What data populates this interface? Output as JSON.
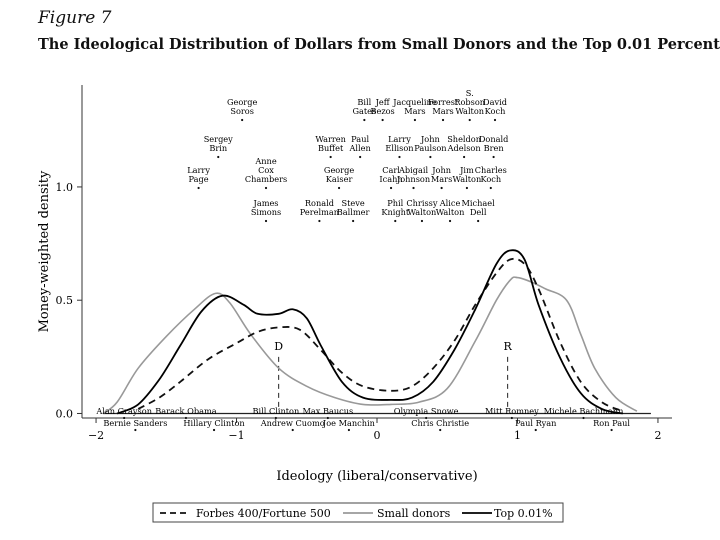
{
  "figure_label": "Figure 7",
  "title": "The Ideological Distribution of Dollars from Small Donors and the Top 0.01 Percent",
  "chart_data": {
    "type": "line",
    "xlabel": "Ideology (liberal/conservative)",
    "ylabel": "Money-weighted density",
    "xlim": [
      -2.1,
      2.1
    ],
    "ylim": [
      -0.02,
      1.45
    ],
    "x_ticks": [
      {
        "value": -2,
        "label": "−2"
      },
      {
        "value": -1,
        "label": "−1"
      },
      {
        "value": 0,
        "label": "0"
      },
      {
        "value": 1,
        "label": "1"
      },
      {
        "value": 2,
        "label": "2"
      }
    ],
    "y_ticks": [
      {
        "value": 0,
        "label": "0.0"
      },
      {
        "value": 0.5,
        "label": "0.5"
      },
      {
        "value": 1,
        "label": "1.0"
      }
    ],
    "grid": false,
    "legend_position": "bottom",
    "series": [
      {
        "name": "Forbes 400/Fortune 500",
        "style": "dashed",
        "color": "#111111",
        "points": [
          [
            -1.7,
            0.02
          ],
          [
            -1.55,
            0.07
          ],
          [
            -1.4,
            0.14
          ],
          [
            -1.2,
            0.24
          ],
          [
            -1.0,
            0.31
          ],
          [
            -0.85,
            0.36
          ],
          [
            -0.7,
            0.38
          ],
          [
            -0.55,
            0.37
          ],
          [
            -0.4,
            0.28
          ],
          [
            -0.25,
            0.18
          ],
          [
            -0.1,
            0.12
          ],
          [
            0.1,
            0.1
          ],
          [
            0.25,
            0.12
          ],
          [
            0.4,
            0.2
          ],
          [
            0.55,
            0.32
          ],
          [
            0.7,
            0.48
          ],
          [
            0.85,
            0.62
          ],
          [
            0.95,
            0.68
          ],
          [
            1.05,
            0.66
          ],
          [
            1.15,
            0.55
          ],
          [
            1.3,
            0.32
          ],
          [
            1.45,
            0.14
          ],
          [
            1.6,
            0.05
          ],
          [
            1.75,
            0.01
          ]
        ]
      },
      {
        "name": "Small donors",
        "style": "solid",
        "color": "#999999",
        "points": [
          [
            -1.95,
            0.0
          ],
          [
            -1.85,
            0.05
          ],
          [
            -1.7,
            0.2
          ],
          [
            -1.5,
            0.34
          ],
          [
            -1.3,
            0.46
          ],
          [
            -1.15,
            0.53
          ],
          [
            -1.05,
            0.49
          ],
          [
            -0.9,
            0.35
          ],
          [
            -0.7,
            0.2
          ],
          [
            -0.5,
            0.12
          ],
          [
            -0.3,
            0.07
          ],
          [
            -0.1,
            0.04
          ],
          [
            0.1,
            0.04
          ],
          [
            0.3,
            0.05
          ],
          [
            0.5,
            0.11
          ],
          [
            0.7,
            0.32
          ],
          [
            0.85,
            0.5
          ],
          [
            0.95,
            0.59
          ],
          [
            1.0,
            0.6
          ],
          [
            1.1,
            0.58
          ],
          [
            1.2,
            0.55
          ],
          [
            1.35,
            0.5
          ],
          [
            1.45,
            0.35
          ],
          [
            1.55,
            0.2
          ],
          [
            1.7,
            0.07
          ],
          [
            1.85,
            0.01
          ]
        ]
      },
      {
        "name": "Top 0.01%",
        "style": "solid",
        "color": "#000000",
        "points": [
          [
            -1.85,
            0.0
          ],
          [
            -1.7,
            0.04
          ],
          [
            -1.55,
            0.15
          ],
          [
            -1.4,
            0.3
          ],
          [
            -1.25,
            0.45
          ],
          [
            -1.1,
            0.52
          ],
          [
            -0.95,
            0.48
          ],
          [
            -0.85,
            0.44
          ],
          [
            -0.7,
            0.44
          ],
          [
            -0.6,
            0.46
          ],
          [
            -0.5,
            0.42
          ],
          [
            -0.4,
            0.3
          ],
          [
            -0.25,
            0.14
          ],
          [
            -0.1,
            0.07
          ],
          [
            0.1,
            0.06
          ],
          [
            0.25,
            0.07
          ],
          [
            0.4,
            0.14
          ],
          [
            0.55,
            0.28
          ],
          [
            0.7,
            0.46
          ],
          [
            0.85,
            0.66
          ],
          [
            0.95,
            0.72
          ],
          [
            1.05,
            0.68
          ],
          [
            1.15,
            0.48
          ],
          [
            1.3,
            0.25
          ],
          [
            1.45,
            0.09
          ],
          [
            1.6,
            0.02
          ],
          [
            1.75,
            0.0
          ]
        ]
      }
    ],
    "markers": [
      {
        "label": "D",
        "x": -0.7
      },
      {
        "label": "R",
        "x": 0.93
      }
    ],
    "top_annotations": [
      {
        "lines": [
          "George",
          "Soros"
        ],
        "x": -0.96,
        "row": 1
      },
      {
        "lines": [
          "Bill",
          "Gates"
        ],
        "x": -0.09,
        "row": 1
      },
      {
        "lines": [
          "Jeff",
          "Bezos"
        ],
        "x": 0.04,
        "row": 1
      },
      {
        "lines": [
          "Jacqueline",
          "Mars"
        ],
        "x": 0.27,
        "row": 1
      },
      {
        "lines": [
          "Forrest",
          "Mars"
        ],
        "x": 0.47,
        "row": 1
      },
      {
        "lines": [
          "S.",
          "Robson",
          "Walton"
        ],
        "x": 0.66,
        "row": 1
      },
      {
        "lines": [
          "David",
          "Koch"
        ],
        "x": 0.84,
        "row": 1
      },
      {
        "lines": [
          "Sergey",
          "Brin"
        ],
        "x": -1.13,
        "row": 2
      },
      {
        "lines": [
          "Warren",
          "Buffet"
        ],
        "x": -0.33,
        "row": 2
      },
      {
        "lines": [
          "Paul",
          "Allen"
        ],
        "x": -0.12,
        "row": 2
      },
      {
        "lines": [
          "Larry",
          "Ellison"
        ],
        "x": 0.16,
        "row": 2
      },
      {
        "lines": [
          "John",
          "Paulson"
        ],
        "x": 0.38,
        "row": 2
      },
      {
        "lines": [
          "Sheldon",
          "Adelson"
        ],
        "x": 0.62,
        "row": 2
      },
      {
        "lines": [
          "Donald",
          "Bren"
        ],
        "x": 0.83,
        "row": 2
      },
      {
        "lines": [
          "Larry",
          "Page"
        ],
        "x": -1.27,
        "row": 3
      },
      {
        "lines": [
          "Anne",
          "Cox",
          "Chambers"
        ],
        "x": -0.79,
        "row": 3
      },
      {
        "lines": [
          "George",
          "Kaiser"
        ],
        "x": -0.27,
        "row": 3
      },
      {
        "lines": [
          "Carl",
          "Icahn"
        ],
        "x": 0.1,
        "row": 3
      },
      {
        "lines": [
          "Abigail",
          "Johnson"
        ],
        "x": 0.26,
        "row": 3
      },
      {
        "lines": [
          "John",
          "Mars"
        ],
        "x": 0.46,
        "row": 3
      },
      {
        "lines": [
          "Jim",
          "Walton"
        ],
        "x": 0.64,
        "row": 3
      },
      {
        "lines": [
          "Charles",
          "Koch"
        ],
        "x": 0.81,
        "row": 3
      },
      {
        "lines": [
          "James",
          "Simons"
        ],
        "x": -0.79,
        "row": 4
      },
      {
        "lines": [
          "Ronald",
          "Perelman"
        ],
        "x": -0.41,
        "row": 4
      },
      {
        "lines": [
          "Steve",
          "Ballmer"
        ],
        "x": -0.17,
        "row": 4
      },
      {
        "lines": [
          "Phil",
          "Knight"
        ],
        "x": 0.13,
        "row": 4
      },
      {
        "lines": [
          "Chrissy",
          "Walton"
        ],
        "x": 0.32,
        "row": 4
      },
      {
        "lines": [
          "Alice",
          "Walton"
        ],
        "x": 0.52,
        "row": 4
      },
      {
        "lines": [
          "Michael",
          "Dell"
        ],
        "x": 0.72,
        "row": 4
      }
    ],
    "bottom_annotations": [
      {
        "label": "Alan Grayson",
        "x": -1.8,
        "row": 1
      },
      {
        "label": "Barack Obama",
        "x": -1.36,
        "row": 1
      },
      {
        "label": "Bill Clinton",
        "x": -0.72,
        "row": 1
      },
      {
        "label": "Max Baucus",
        "x": -0.35,
        "row": 1
      },
      {
        "label": "Olympia Snowe",
        "x": 0.35,
        "row": 1
      },
      {
        "label": "Mitt Romney",
        "x": 0.96,
        "row": 1
      },
      {
        "label": "Michele Bachmann",
        "x": 1.47,
        "row": 1
      },
      {
        "label": "Bernie Sanders",
        "x": -1.72,
        "row": 2
      },
      {
        "label": "Hillary Clinton",
        "x": -1.16,
        "row": 2
      },
      {
        "label": "Andrew Cuomo",
        "x": -0.6,
        "row": 2
      },
      {
        "label": "Joe Manchin",
        "x": -0.2,
        "row": 2
      },
      {
        "label": "Chris Christie",
        "x": 0.45,
        "row": 2
      },
      {
        "label": "Paul Ryan",
        "x": 1.13,
        "row": 2
      },
      {
        "label": "Ron Paul",
        "x": 1.67,
        "row": 2
      }
    ]
  }
}
